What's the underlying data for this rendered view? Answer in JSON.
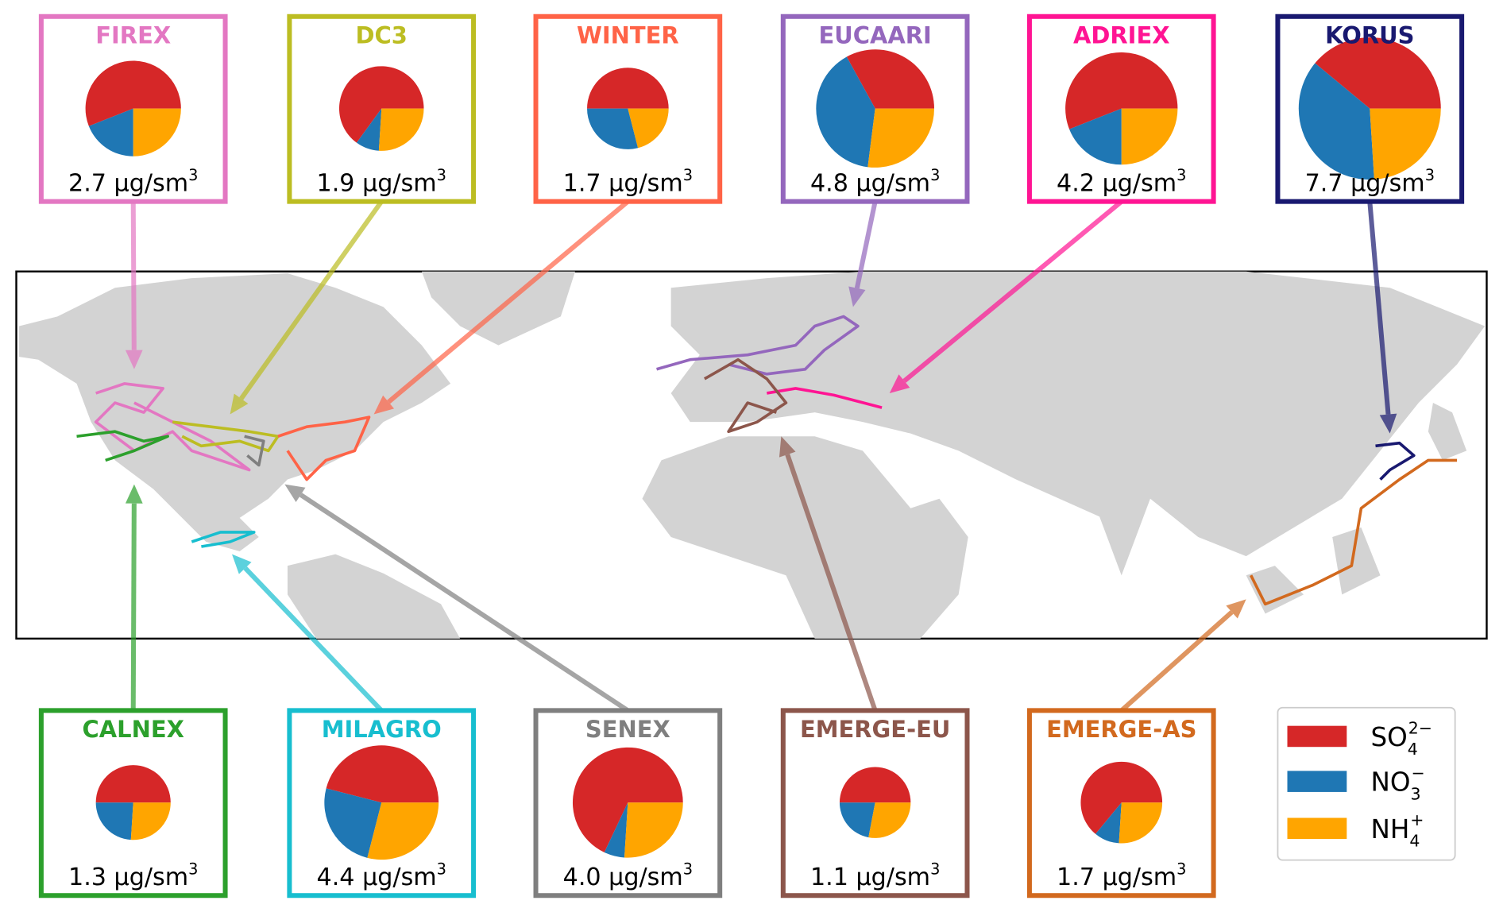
{
  "unit_exponent": "3",
  "colors": {
    "sulfate": "#d62728",
    "nitrate": "#1f77b4",
    "ammonium": "#ffa500",
    "land": "#d3d3d3"
  },
  "legend": {
    "items": [
      {
        "base": "SO",
        "sub": "4",
        "sup": "2−",
        "color": "#d62728"
      },
      {
        "base": "NO",
        "sub": "3",
        "sup": "−",
        "color": "#1f77b4"
      },
      {
        "base": "NH",
        "sub": "4",
        "sup": "+",
        "color": "#ffa500"
      }
    ]
  },
  "campaigns": [
    {
      "name": "FIREX",
      "color": "#e377c2",
      "concentration": "2.7 μg/sm",
      "value": 2.7,
      "fractions": [
        0.56,
        0.19,
        0.25
      ]
    },
    {
      "name": "DC3",
      "color": "#bcbd22",
      "concentration": "1.9 μg/sm",
      "value": 1.9,
      "fractions": [
        0.65,
        0.09,
        0.26
      ]
    },
    {
      "name": "WINTER",
      "color": "#ff6347",
      "concentration": "1.7 μg/sm",
      "value": 1.7,
      "fractions": [
        0.5,
        0.29,
        0.21
      ]
    },
    {
      "name": "EUCAARI",
      "color": "#9467bd",
      "concentration": "4.8 μg/sm",
      "value": 4.8,
      "fractions": [
        0.33,
        0.4,
        0.27
      ]
    },
    {
      "name": "ADRIEX",
      "color": "#ff1493",
      "concentration": "4.2 μg/sm",
      "value": 4.2,
      "fractions": [
        0.56,
        0.19,
        0.25
      ]
    },
    {
      "name": "KORUS",
      "color": "#191970",
      "concentration": "7.7 μg/sm",
      "value": 7.7,
      "fractions": [
        0.39,
        0.37,
        0.24
      ]
    },
    {
      "name": "CALNEX",
      "color": "#2ca02c",
      "concentration": "1.3 μg/sm",
      "value": 1.3,
      "fractions": [
        0.5,
        0.24,
        0.26
      ]
    },
    {
      "name": "MILAGRO",
      "color": "#17becf",
      "concentration": "4.4 μg/sm",
      "value": 4.4,
      "fractions": [
        0.46,
        0.25,
        0.29
      ]
    },
    {
      "name": "SENEX",
      "color": "#7f7f7f",
      "concentration": "4.0 μg/sm",
      "value": 4.0,
      "fractions": [
        0.68,
        0.06,
        0.26
      ]
    },
    {
      "name": "EMERGE-EU",
      "color": "#8c564b",
      "concentration": "1.1 μg/sm",
      "value": 1.1,
      "fractions": [
        0.5,
        0.22,
        0.28
      ]
    },
    {
      "name": "EMERGE-AS",
      "color": "#d2691e",
      "concentration": "1.7 μg/sm",
      "value": 1.7,
      "fractions": [
        0.64,
        0.1,
        0.26
      ]
    }
  ]
}
